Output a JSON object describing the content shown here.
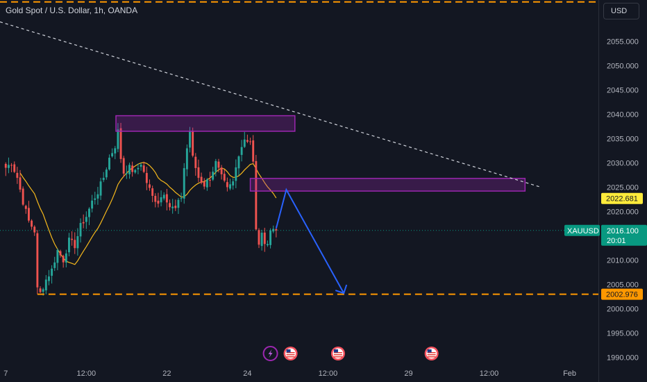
{
  "header": {
    "symbol_title": "Gold Spot / U.S. Dollar, 1h, OANDA",
    "currency": "USD"
  },
  "colors": {
    "background": "#131722",
    "bull": "#26a69a",
    "bear": "#ef5350",
    "ma": "#f5b81c",
    "zone": "#9c27b0",
    "projection": "#2962ff",
    "support": "#ff9800",
    "trendline": "#d1d4dc",
    "last_price": "#089981"
  },
  "chart_data": {
    "type": "candlestick",
    "symbol": "XAUUSD",
    "y_axis": {
      "range": [
        1988.5,
        2063.5
      ],
      "ticks": [
        1990,
        1995,
        2000,
        2005,
        2010,
        2015,
        2020,
        2025,
        2030,
        2035,
        2040,
        2045,
        2050,
        2055
      ],
      "tick_labels": [
        "1990.000",
        "1995.000",
        "2000.000",
        "2005.000",
        "2010.000",
        "2015.000",
        "2020.000",
        "2025.000",
        "2030.000",
        "2035.000",
        "2040.000",
        "2045.000",
        "2050.000",
        "2055.000"
      ]
    },
    "x_axis": {
      "bar_range": [
        -2,
        206
      ],
      "tick_bars": [
        0,
        28,
        56,
        84,
        112,
        140,
        168,
        196
      ],
      "tick_labels": [
        "7",
        "12:00",
        "22",
        "24",
        "12:00",
        "29",
        "12:00",
        "Feb"
      ]
    },
    "anchors": [
      [
        0,
        2029
      ],
      [
        2,
        2030
      ],
      [
        4,
        2027
      ],
      [
        6,
        2022
      ],
      [
        8,
        2018
      ],
      [
        10,
        2016
      ],
      [
        11,
        2004
      ],
      [
        12,
        2003.2
      ],
      [
        14,
        2006
      ],
      [
        16,
        2008
      ],
      [
        18,
        2012
      ],
      [
        20,
        2010
      ],
      [
        22,
        2014
      ],
      [
        24,
        2013
      ],
      [
        26,
        2017
      ],
      [
        28,
        2019
      ],
      [
        30,
        2022
      ],
      [
        32,
        2024
      ],
      [
        34,
        2027
      ],
      [
        36,
        2031
      ],
      [
        38,
        2033.5
      ],
      [
        39,
        2036.5
      ],
      [
        40,
        2031
      ],
      [
        41,
        2028
      ],
      [
        43,
        2029
      ],
      [
        45,
        2028
      ],
      [
        47,
        2030
      ],
      [
        49,
        2026
      ],
      [
        51,
        2023
      ],
      [
        53,
        2022
      ],
      [
        55,
        2024
      ],
      [
        57,
        2021
      ],
      [
        59,
        2020.5
      ],
      [
        61,
        2023
      ],
      [
        62,
        2029
      ],
      [
        63,
        2033
      ],
      [
        64,
        2036.5
      ],
      [
        65,
        2031
      ],
      [
        67,
        2027
      ],
      [
        69,
        2025.5
      ],
      [
        71,
        2027
      ],
      [
        73,
        2030
      ],
      [
        75,
        2027
      ],
      [
        77,
        2024.5
      ],
      [
        79,
        2026
      ],
      [
        81,
        2032
      ],
      [
        83,
        2035
      ],
      [
        85,
        2034.5
      ],
      [
        86,
        2030
      ],
      [
        87,
        2016
      ],
      [
        88,
        2013.5
      ],
      [
        89,
        2015
      ],
      [
        90,
        2014
      ],
      [
        91,
        2013.5
      ],
      [
        92,
        2016
      ],
      [
        93,
        2016.5
      ],
      [
        94,
        2016.1
      ]
    ],
    "ma_start_bar": 5,
    "ma_window": 14,
    "last_price": "2016.100",
    "countdown": "20:01",
    "levels": [
      {
        "label": "2022.681",
        "value": 2022.681,
        "color": "#ffeb3b",
        "text_color": "#131722"
      },
      {
        "label": "2002.976",
        "value": 2002.976,
        "color": "#ff9800",
        "text_color": "#131722"
      }
    ],
    "zones": [
      {
        "bar_from": 38.3,
        "bar_to": 100.5,
        "top": 2039.7,
        "bottom": 2036.5
      },
      {
        "bar_from": 85,
        "bar_to": 180.5,
        "top": 2026.8,
        "bottom": 2024.2
      }
    ],
    "trendline": [
      [
        -2,
        2059
      ],
      [
        186,
        2025
      ]
    ],
    "support_line": {
      "bar_from": 11,
      "bar_to": 206,
      "value": 2002.976
    },
    "top_dash_value": 2063.1,
    "projection": [
      [
        94,
        2016.5
      ],
      [
        97.5,
        2024.5
      ],
      [
        117.5,
        2003.2
      ]
    ],
    "event_icons": [
      {
        "bar": 92,
        "kind": "dividend-bolt"
      },
      {
        "bar": 99,
        "kind": "us-flag"
      },
      {
        "bar": 115.5,
        "kind": "us-flag"
      },
      {
        "bar": 148,
        "kind": "us-flag"
      }
    ]
  }
}
